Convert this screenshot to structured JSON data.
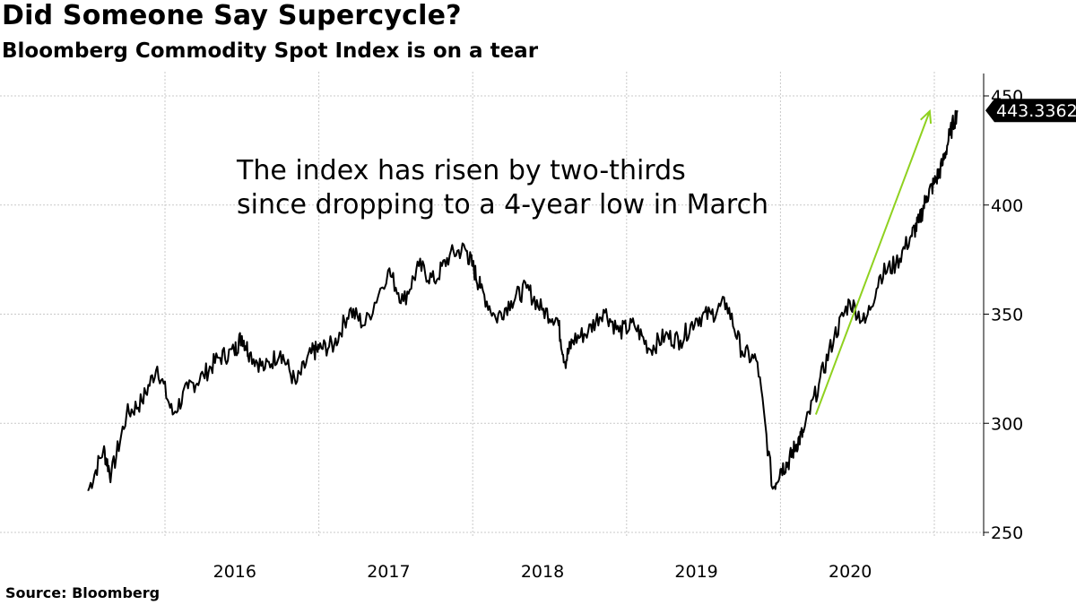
{
  "title": "Did Someone Say Supercycle?",
  "subtitle": "Bloomberg Commodity Spot Index is on a tear",
  "source": "Source: Bloomberg",
  "chart_data": {
    "type": "line",
    "title": "Did Someone Say Supercycle?",
    "subtitle": "Bloomberg Commodity Spot Index is on a tear",
    "series": [
      {
        "name": "Bloomberg Commodity Spot Index",
        "color": "#000000",
        "x": [
          2015.5,
          2015.6,
          2015.65,
          2015.75,
          2015.85,
          2015.95,
          2016.05,
          2016.15,
          2016.25,
          2016.35,
          2016.45,
          2016.5,
          2016.55,
          2016.65,
          2016.75,
          2016.85,
          2016.95,
          2017.0,
          2017.1,
          2017.2,
          2017.3,
          2017.45,
          2017.55,
          2017.65,
          2017.75,
          2017.85,
          2017.95,
          2018.0,
          2018.05,
          2018.15,
          2018.25,
          2018.35,
          2018.45,
          2018.55,
          2018.6,
          2018.65,
          2018.75,
          2018.85,
          2018.95,
          2019.05,
          2019.15,
          2019.25,
          2019.35,
          2019.45,
          2019.55,
          2019.65,
          2019.75,
          2019.85,
          2019.95,
          2020.0,
          2020.05,
          2020.1,
          2020.15,
          2020.25,
          2020.35,
          2020.45,
          2020.55,
          2020.65,
          2020.75,
          2020.85,
          2020.9,
          2020.95,
          2021.0,
          2021.05,
          2021.1,
          2021.15
        ],
        "values": [
          269,
          288,
          276,
          304,
          310,
          326,
          304,
          316,
          322,
          330,
          333,
          340,
          332,
          325,
          333,
          318,
          332,
          334,
          336,
          352,
          345,
          370,
          356,
          372,
          365,
          377,
          380,
          372,
          362,
          348,
          356,
          362,
          352,
          348,
          328,
          338,
          342,
          352,
          342,
          345,
          334,
          340,
          338,
          348,
          350,
          355,
          333,
          328,
          270,
          279,
          282,
          290,
          296,
          318,
          340,
          356,
          346,
          368,
          373,
          386,
          392,
          404,
          410,
          418,
          432,
          443.3362
        ]
      }
    ],
    "x_ticks": [
      2016.0,
      2017.0,
      2018.0,
      2019.0,
      2020.0
    ],
    "x_tick_labels": [
      "2016",
      "2017",
      "2018",
      "2019",
      "2020"
    ],
    "x_range": [
      2015.5,
      2021.15
    ],
    "y_ticks": [
      250,
      300,
      350,
      400,
      450
    ],
    "y_tick_labels": [
      "250",
      "300",
      "350",
      "400",
      "450"
    ],
    "ylim": [
      250,
      450
    ],
    "last_value_label": "443.3362",
    "annotation": [
      "The index has risen by two-thirds",
      "since dropping to a 4-year low in March"
    ],
    "trend_arrow": {
      "color": "#8fd11f",
      "from": {
        "x": 2020.23,
        "y": 304
      },
      "to": {
        "x": 2020.97,
        "y": 443
      }
    },
    "grid": true,
    "xlabel": "",
    "ylabel": ""
  }
}
